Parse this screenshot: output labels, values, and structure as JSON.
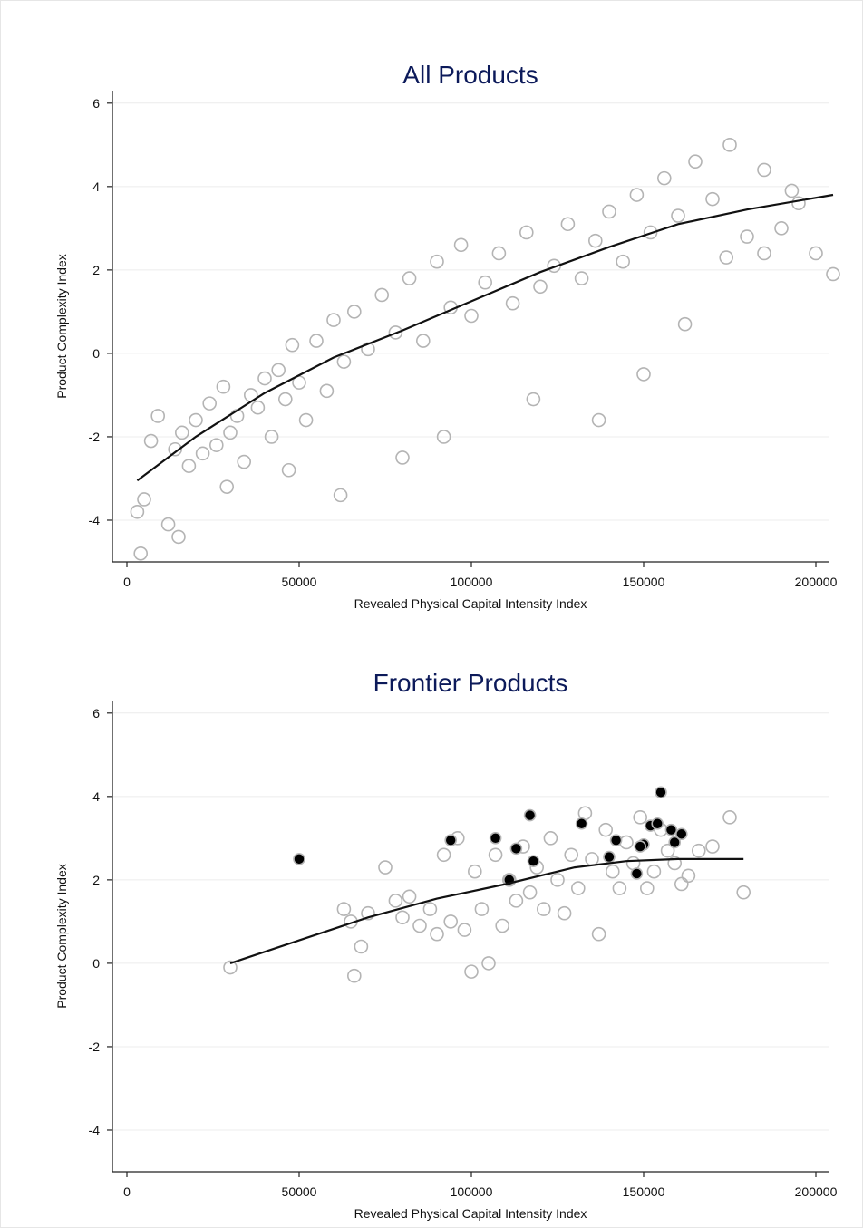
{
  "chart_data": [
    {
      "type": "scatter",
      "title": "All Products",
      "xlabel": "Revealed Physical Capital Intensity Index",
      "ylabel": "Product Complexity Index",
      "xlim": [
        0,
        200000
      ],
      "ylim": [
        -5,
        6.3
      ],
      "xticks": [
        0,
        50000,
        100000,
        150000,
        200000
      ],
      "yticks": [
        6,
        4,
        2,
        0,
        -2,
        -4
      ],
      "grid": "horizontal",
      "marker_color": "#b4b4b4",
      "line_color": "#111111",
      "series": [
        {
          "kind": "points",
          "style": "hollow-gray",
          "x": [
            3000,
            5000,
            7000,
            9000,
            12000,
            14000,
            16000,
            18000,
            20000,
            22000,
            24000,
            26000,
            28000,
            30000,
            32000,
            34000,
            36000,
            38000,
            40000,
            42000,
            44000,
            46000,
            48000,
            50000,
            52000,
            55000,
            58000,
            60000,
            63000,
            66000,
            70000,
            74000,
            78000,
            82000,
            86000,
            90000,
            94000,
            97000,
            100000,
            104000,
            108000,
            112000,
            116000,
            120000,
            124000,
            128000,
            132000,
            136000,
            140000,
            144000,
            148000,
            152000,
            156000,
            160000,
            165000,
            170000,
            175000,
            180000,
            185000,
            190000,
            195000,
            200000,
            205000,
            4000,
            15000,
            29000,
            47000,
            62000,
            80000,
            92000,
            118000,
            137000,
            150000,
            162000,
            174000,
            185000,
            193000
          ],
          "y": [
            -3.8,
            -3.5,
            -2.1,
            -1.5,
            -4.1,
            -2.3,
            -1.9,
            -2.7,
            -1.6,
            -2.4,
            -1.2,
            -2.2,
            -0.8,
            -1.9,
            -1.5,
            -2.6,
            -1.0,
            -1.3,
            -0.6,
            -2.0,
            -0.4,
            -1.1,
            0.2,
            -0.7,
            -1.6,
            0.3,
            -0.9,
            0.8,
            -0.2,
            1.0,
            0.1,
            1.4,
            0.5,
            1.8,
            0.3,
            2.2,
            1.1,
            2.6,
            0.9,
            1.7,
            2.4,
            1.2,
            2.9,
            1.6,
            2.1,
            3.1,
            1.8,
            2.7,
            3.4,
            2.2,
            3.8,
            2.9,
            4.2,
            3.3,
            4.6,
            3.7,
            5.0,
            2.8,
            4.4,
            3.0,
            3.6,
            2.4,
            1.9,
            -4.8,
            -4.4,
            -3.2,
            -2.8,
            -3.4,
            -2.5,
            -2.0,
            -1.1,
            -1.6,
            -0.5,
            0.7,
            2.3,
            2.4,
            3.9
          ]
        },
        {
          "kind": "line",
          "name": "",
          "x": [
            3000,
            20000,
            40000,
            60000,
            80000,
            100000,
            120000,
            140000,
            160000,
            180000,
            205000
          ],
          "y": [
            -3.05,
            -2.0,
            -0.95,
            -0.1,
            0.55,
            1.25,
            1.95,
            2.55,
            3.1,
            3.45,
            3.8
          ]
        }
      ]
    },
    {
      "type": "scatter",
      "title": "Frontier Products",
      "xlabel": "Revealed Physical Capital Intensity Index",
      "ylabel": "Product Complexity Index",
      "xlim": [
        0,
        200000
      ],
      "ylim": [
        -5,
        6.3
      ],
      "xticks": [
        0,
        50000,
        100000,
        150000,
        200000
      ],
      "yticks": [
        6,
        4,
        2,
        0,
        -2,
        -4
      ],
      "grid": "horizontal",
      "marker_color": "#b4b4b4",
      "line_color": "#111111",
      "series": [
        {
          "kind": "points",
          "style": "hollow-gray",
          "x": [
            30000,
            63000,
            65000,
            66000,
            68000,
            70000,
            75000,
            78000,
            80000,
            82000,
            85000,
            88000,
            90000,
            92000,
            94000,
            96000,
            98000,
            100000,
            101000,
            103000,
            105000,
            107000,
            109000,
            111000,
            113000,
            115000,
            117000,
            119000,
            121000,
            123000,
            125000,
            127000,
            129000,
            131000,
            133000,
            135000,
            137000,
            139000,
            141000,
            143000,
            145000,
            147000,
            149000,
            151000,
            153000,
            155000,
            157000,
            159000,
            161000,
            163000,
            166000,
            170000,
            175000,
            179000
          ],
          "y": [
            -0.1,
            1.3,
            1.0,
            -0.3,
            0.4,
            1.2,
            2.3,
            1.5,
            1.1,
            1.6,
            0.9,
            1.3,
            0.7,
            2.6,
            1.0,
            3.0,
            0.8,
            -0.2,
            2.2,
            1.3,
            0.0,
            2.6,
            0.9,
            2.0,
            1.5,
            2.8,
            1.7,
            2.3,
            1.3,
            3.0,
            2.0,
            1.2,
            2.6,
            1.8,
            3.6,
            2.5,
            0.7,
            3.2,
            2.2,
            1.8,
            2.9,
            2.4,
            3.5,
            1.8,
            2.2,
            3.2,
            2.7,
            2.4,
            1.9,
            2.1,
            2.7,
            2.8,
            3.5,
            1.7
          ]
        },
        {
          "kind": "points",
          "style": "filled-black",
          "x": [
            50000,
            94000,
            107000,
            111000,
            113000,
            117000,
            118000,
            132000,
            140000,
            142000,
            148000,
            150000,
            152000,
            154000,
            155000,
            158000,
            159000,
            161000,
            149000
          ],
          "y": [
            2.5,
            2.95,
            3.0,
            2.0,
            2.75,
            3.55,
            2.45,
            3.35,
            2.55,
            2.95,
            2.15,
            2.85,
            3.3,
            3.35,
            4.1,
            3.2,
            2.9,
            3.1,
            2.8
          ]
        },
        {
          "kind": "line",
          "name": "",
          "x": [
            30000,
            50000,
            70000,
            90000,
            110000,
            130000,
            145000,
            160000,
            179000
          ],
          "y": [
            0.0,
            0.55,
            1.1,
            1.55,
            1.9,
            2.3,
            2.45,
            2.5,
            2.5
          ]
        }
      ]
    }
  ]
}
